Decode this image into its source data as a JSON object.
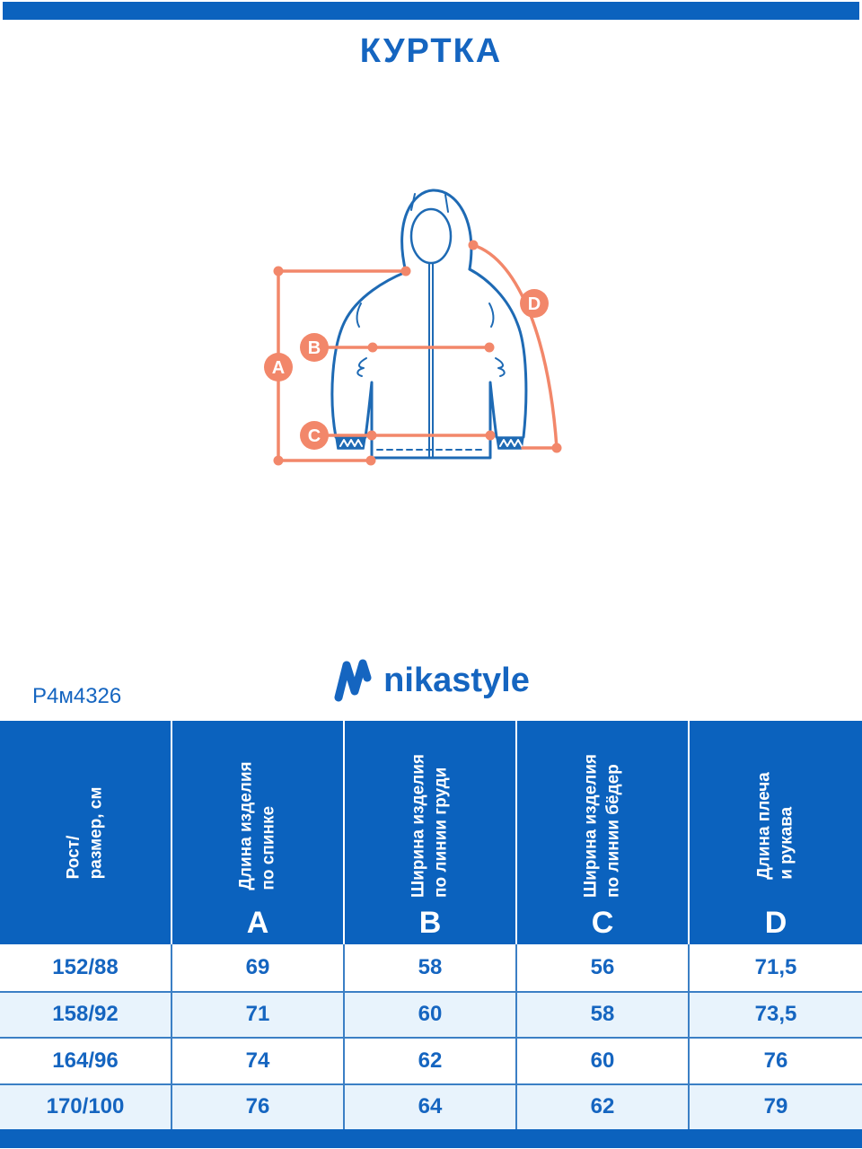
{
  "header": {
    "title": "КУРТКА"
  },
  "footer_brand": {
    "product_code": "Р4м4326",
    "brand_name": "nikastyle"
  },
  "diagram": {
    "labels": [
      "A",
      "B",
      "C",
      "D"
    ]
  },
  "size_table": {
    "columns": [
      {
        "label": "Рост/\nразмер, см",
        "letter": ""
      },
      {
        "label": "Длина изделия\nпо спинке",
        "letter": "A"
      },
      {
        "label": "Ширина изделия\nпо линии груди",
        "letter": "B"
      },
      {
        "label": "Ширина изделия\nпо линии бёдер",
        "letter": "C"
      },
      {
        "label": "Длина плеча\nи рукава",
        "letter": "D"
      }
    ],
    "rows": [
      {
        "size": "152/88",
        "values": [
          "69",
          "58",
          "56",
          "71,5"
        ]
      },
      {
        "size": "158/92",
        "values": [
          "71",
          "60",
          "58",
          "73,5"
        ]
      },
      {
        "size": "164/96",
        "values": [
          "74",
          "62",
          "60",
          "76"
        ]
      },
      {
        "size": "170/100",
        "values": [
          "76",
          "64",
          "62",
          "79"
        ]
      }
    ]
  },
  "chart_data": {
    "type": "table",
    "title": "КУРТКА",
    "columns": [
      "Рост/размер, см",
      "A — Длина изделия по спинке",
      "B — Ширина изделия по линии груди",
      "C — Ширина изделия по линии бёдер",
      "D — Длина плеча и рукава"
    ],
    "rows": [
      [
        "152/88",
        69,
        58,
        56,
        71.5
      ],
      [
        "158/92",
        71,
        60,
        58,
        73.5
      ],
      [
        "164/96",
        74,
        62,
        60,
        76
      ],
      [
        "170/100",
        76,
        64,
        62,
        79
      ]
    ]
  },
  "colors": {
    "primary_blue": "#0B62BE",
    "text_blue": "#1565C0",
    "row_alt_blue": "#E8F3FC",
    "border_blue": "#3B7FC5",
    "accent_orange": "#F2876A",
    "jacket_blue": "#1E6AB4"
  }
}
